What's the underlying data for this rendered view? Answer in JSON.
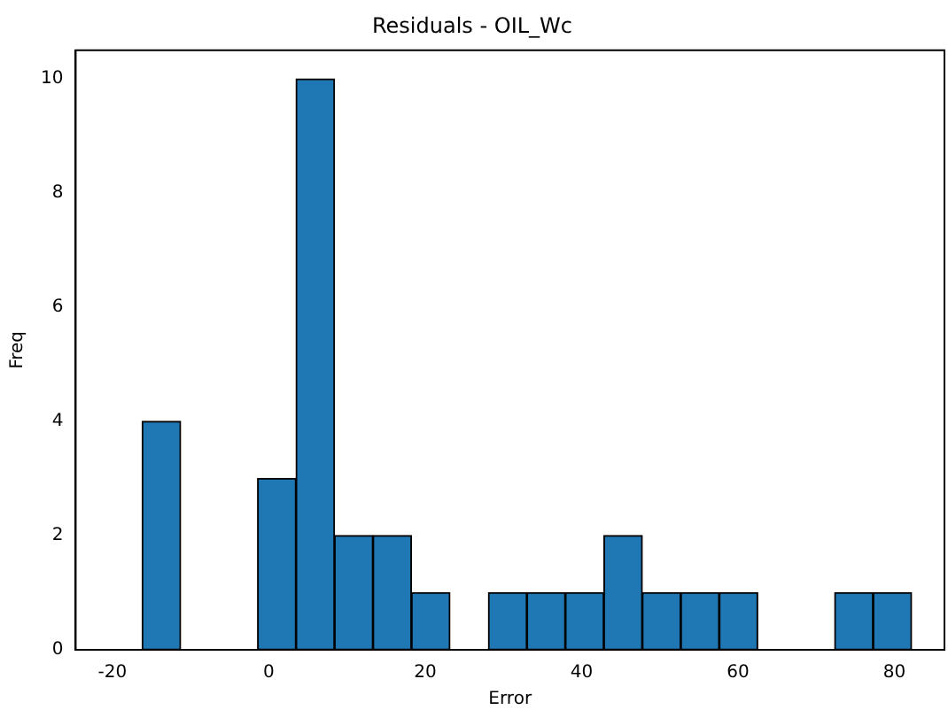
{
  "chart_data": {
    "type": "histogram",
    "title": "Residuals - OIL_Wc",
    "xlabel": "Error",
    "ylabel": "Freq",
    "bins": [
      -16.2,
      -11.28,
      -6.36,
      -1.44,
      3.48,
      8.4,
      13.32,
      18.24,
      23.16,
      28.08,
      33.0,
      37.92,
      42.84,
      47.76,
      52.68,
      57.6,
      62.52,
      67.44,
      72.36,
      77.28,
      82.2
    ],
    "values": [
      4,
      0,
      0,
      3,
      10,
      2,
      2,
      1,
      0,
      1,
      1,
      1,
      2,
      1,
      1,
      1,
      0,
      0,
      1,
      1
    ],
    "color": "#1f77b4",
    "xlim": [
      -24.7,
      86.4
    ],
    "xticks": [
      -20,
      0,
      20,
      40,
      60,
      80
    ],
    "ylim": [
      0,
      10.5
    ],
    "yticks": [
      0,
      2,
      4,
      6,
      8,
      10
    ],
    "grid": false,
    "legend": false
  }
}
